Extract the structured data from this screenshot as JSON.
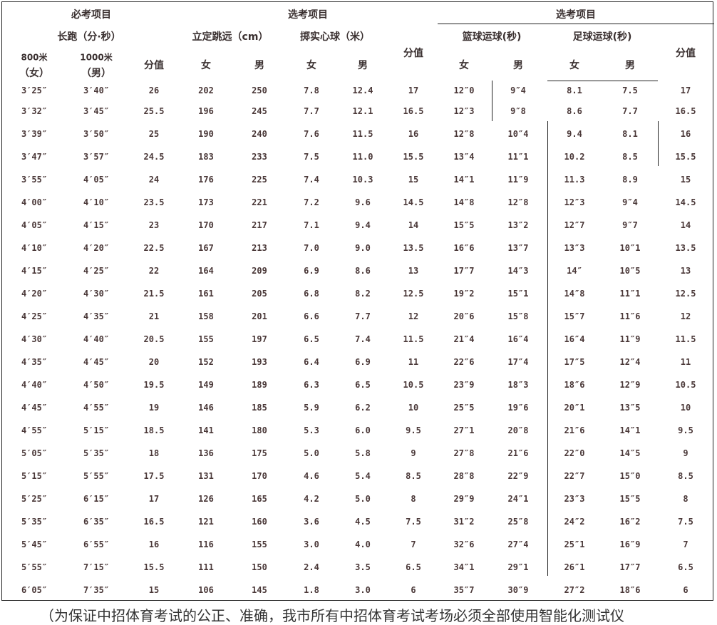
{
  "header": {
    "required_group": "必考项目",
    "elective_group_1": "选考项目",
    "elective_group_2": "选考项目",
    "long_run": "长跑（分·秒）",
    "standing_jump": "立定跳远（cm）",
    "medicine_ball": "掷实心球（米）",
    "basketball": "篮球运球(秒)",
    "football": "足球运球(秒)",
    "run_800": "800米",
    "run_800_sex": "（女）",
    "run_1000": "1000米",
    "run_1000_sex": "（男）",
    "score_1": "分值",
    "score_2": "分值",
    "score_3": "分值",
    "jump_f": "女",
    "jump_m": "男",
    "ball_f": "女",
    "ball_m": "男",
    "bb_f": "女",
    "bb_m": "男",
    "fb_f": "女",
    "fb_m": "男"
  },
  "rows": [
    [
      "3′25″",
      "3′40″",
      "26",
      "202",
      "250",
      "7.8",
      "12.4",
      "17",
      "12″0",
      "9″4",
      "8.1",
      "7.5",
      "17"
    ],
    [
      "3′32″",
      "3′45″",
      "25.5",
      "196",
      "245",
      "7.7",
      "12.1",
      "16.5",
      "12″3",
      "9″8",
      "8.6",
      "7.7",
      "16.5"
    ],
    [
      "3′39″",
      "3′50″",
      "25",
      "190",
      "240",
      "7.6",
      "11.5",
      "16",
      "12″8",
      "10″4",
      "9.4",
      "8.1",
      "16"
    ],
    [
      "3′47″",
      "3′57″",
      "24.5",
      "183",
      "233",
      "7.5",
      "11.0",
      "15.5",
      "13″4",
      "11″1",
      "10.2",
      "8.5",
      "15.5"
    ],
    [
      "3′55″",
      "4′05″",
      "24",
      "176",
      "225",
      "7.4",
      "10.3",
      "15",
      "14″1",
      "11″9",
      "11.3",
      "8.9",
      "15"
    ],
    [
      "4′00″",
      "4′10″",
      "23.5",
      "173",
      "221",
      "7.2",
      "9.6",
      "14.5",
      "14″8",
      "12″8",
      "12″3",
      "9″4",
      "14.5"
    ],
    [
      "4′05″",
      "4′15″",
      "23",
      "170",
      "217",
      "7.1",
      "9.4",
      "14",
      "15″5",
      "13″2",
      "12″7",
      "9″7",
      "14"
    ],
    [
      "4′10″",
      "4′20″",
      "22.5",
      "167",
      "213",
      "7.0",
      "9.0",
      "13.5",
      "16″6",
      "13″7",
      "13″3",
      "10″1",
      "13.5"
    ],
    [
      "4′15″",
      "4′25″",
      "22",
      "164",
      "209",
      "6.9",
      "8.6",
      "13",
      "17″7",
      "14″3",
      "14″",
      "10″5",
      "13"
    ],
    [
      "4′20″",
      "4′30″",
      "21.5",
      "161",
      "205",
      "6.8",
      "8.2",
      "12.5",
      "19″2",
      "15″1",
      "14″8",
      "11″1",
      "12.5"
    ],
    [
      "4′25″",
      "4′35″",
      "21",
      "158",
      "201",
      "6.6",
      "7.7",
      "12",
      "20″6",
      "15″8",
      "15″7",
      "11″6",
      "12"
    ],
    [
      "4′30″",
      "4′40″",
      "20.5",
      "155",
      "197",
      "6.5",
      "7.4",
      "11.5",
      "21″4",
      "16″4",
      "16″4",
      "11″9",
      "11.5"
    ],
    [
      "4′35″",
      "4′45″",
      "20",
      "152",
      "193",
      "6.4",
      "6.9",
      "11",
      "22″6",
      "17″4",
      "17″5",
      "12″4",
      "11"
    ],
    [
      "4′40″",
      "4′50″",
      "19.5",
      "149",
      "189",
      "6.3",
      "6.5",
      "10.5",
      "23″9",
      "18″3",
      "18″6",
      "12″9",
      "10.5"
    ],
    [
      "4′45″",
      "4′55″",
      "19",
      "146",
      "185",
      "5.9",
      "6.2",
      "10",
      "25″5",
      "19″6",
      "20″1",
      "13″5",
      "10"
    ],
    [
      "4′55″",
      "5′15″",
      "18.5",
      "141",
      "180",
      "5.3",
      "6.0",
      "9.5",
      "27″1",
      "20″8",
      "21″6",
      "14″1",
      "9.5"
    ],
    [
      "5′05″",
      "5′35″",
      "18",
      "136",
      "175",
      "5.0",
      "5.8",
      "9",
      "27″8",
      "21″6",
      "22″0",
      "14″5",
      "9"
    ],
    [
      "5′15″",
      "5′55″",
      "17.5",
      "131",
      "170",
      "4.6",
      "5.4",
      "8.5",
      "28″8",
      "22″9",
      "22″7",
      "15″0",
      "8.5"
    ],
    [
      "5′25″",
      "6′15″",
      "17",
      "126",
      "165",
      "4.2",
      "5.0",
      "8",
      "29″9",
      "24″1",
      "23″3",
      "15″5",
      "8"
    ],
    [
      "5′35″",
      "6′35″",
      "16.5",
      "121",
      "160",
      "3.6",
      "4.5",
      "7.5",
      "31″2",
      "25″8",
      "24″2",
      "16″2",
      "7.5"
    ],
    [
      "5′45″",
      "6′55″",
      "16",
      "116",
      "155",
      "3.0",
      "4.0",
      "7",
      "32″6",
      "27″4",
      "25″1",
      "16″9",
      "7"
    ],
    [
      "5′55″",
      "7′15″",
      "15.5",
      "111",
      "150",
      "2.4",
      "3.5",
      "6.5",
      "34″1",
      "29″1",
      "26″1",
      "17″7",
      "6.5"
    ],
    [
      "6′05″",
      "7′35″",
      "15",
      "106",
      "145",
      "1.8",
      "3.0",
      "6",
      "35″7",
      "30″9",
      "27″2",
      "18″6",
      "6"
    ]
  ],
  "footer": "（为保证中招体育考试的公正、准确，我市所有中招体育考试考场必须全部使用智能化测试仪"
}
